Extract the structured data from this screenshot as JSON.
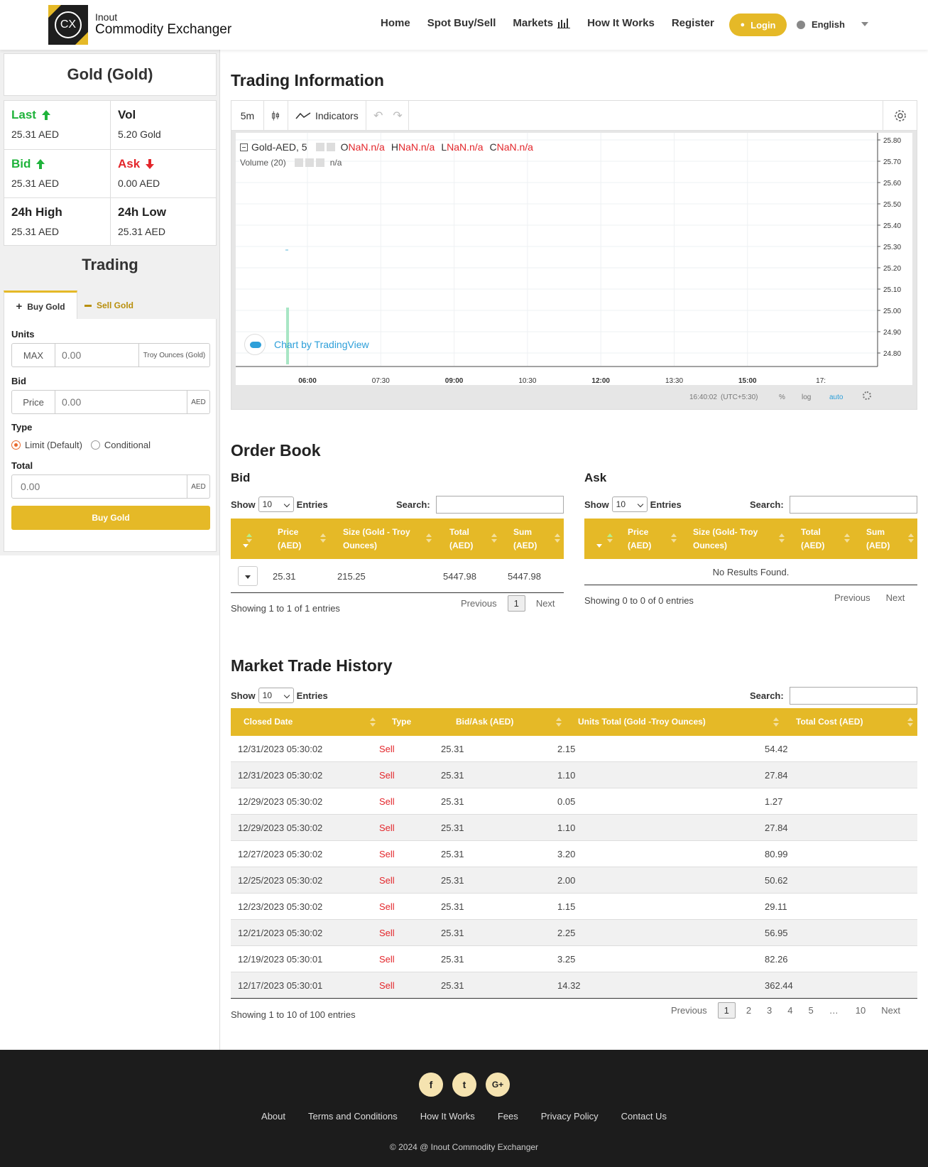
{
  "header": {
    "logo_mark": "CX",
    "logo_small": "Inout",
    "logo_big": "Commodity Exchanger",
    "nav": [
      "Home",
      "Spot Buy/Sell",
      "Markets",
      "How It Works",
      "Register"
    ],
    "login": "Login",
    "language": "English"
  },
  "sidebar": {
    "asset_title": "Gold (Gold)",
    "stats": {
      "last_label": "Last",
      "last_value": "25.31 AED",
      "vol_label": "Vol",
      "vol_value": "5.20 Gold",
      "bid_label": "Bid",
      "bid_value": "25.31 AED",
      "ask_label": "Ask",
      "ask_value": "0.00 AED",
      "high_label": "24h High",
      "high_value": "25.31 AED",
      "low_label": "24h Low",
      "low_value": "25.31 AED"
    },
    "trading_title": "Trading",
    "tab_buy": "Buy Gold",
    "tab_sell": "Sell Gold",
    "form": {
      "units_label": "Units",
      "units_prefix": "MAX",
      "units_placeholder": "0.00",
      "units_suffix": "Troy Ounces (Gold)",
      "bid_label": "Bid",
      "bid_prefix": "Price",
      "bid_placeholder": "0.00",
      "bid_suffix": "AED",
      "type_label": "Type",
      "type_limit": "Limit (Default)",
      "type_conditional": "Conditional",
      "total_label": "Total",
      "total_placeholder": "0.00",
      "total_suffix": "AED",
      "submit": "Buy Gold"
    }
  },
  "trading_info": {
    "title": "Trading Information",
    "toolbar": {
      "interval": "5m",
      "indicators": "Indicators"
    },
    "legend": {
      "symbol": "Gold-AED, 5",
      "o": "O",
      "h": "H",
      "l": "L",
      "c": "C",
      "nan": "NaN.n/a",
      "volume": "Volume (20)",
      "volume_val": "n/a"
    },
    "attribution": "Chart by TradingView",
    "price_axis": [
      "25.80",
      "25.70",
      "25.60",
      "25.50",
      "25.40",
      "25.30",
      "25.20",
      "25.10",
      "25.00",
      "24.90",
      "24.80"
    ],
    "time_axis": [
      "06:00",
      "07:30",
      "09:00",
      "10:30",
      "12:00",
      "13:30",
      "15:00",
      "17:"
    ],
    "footer": {
      "time": "16:40:02",
      "tz": "(UTC+5:30)",
      "pct": "%",
      "log": "log",
      "auto": "auto"
    }
  },
  "chart_data": {
    "type": "line",
    "title": "Gold-AED, 5",
    "x": [
      "06:00",
      "07:30",
      "09:00",
      "10:30",
      "12:00",
      "13:30",
      "15:00"
    ],
    "series": [],
    "ylim": [
      24.8,
      25.8
    ],
    "grid": true
  },
  "order_book": {
    "title": "Order Book",
    "show": "Show",
    "entries": "Entries",
    "entries_count": "10",
    "search": "Search:",
    "headers": [
      "Price (AED)",
      "Size (Gold - Troy Ounces)",
      "Total (AED)",
      "Sum (AED)"
    ],
    "ask_headers": [
      "Price (AED)",
      "Size (Gold- Troy Ounces)",
      "Total (AED)",
      "Sum (AED)"
    ],
    "bid": {
      "title": "Bid",
      "rows": [
        [
          "25.31",
          "215.25",
          "5447.98",
          "5447.98"
        ]
      ],
      "info": "Showing 1 to 1 of 1 entries",
      "prev": "Previous",
      "page": "1",
      "next": "Next"
    },
    "ask": {
      "title": "Ask",
      "empty": "No Results Found.",
      "info": "Showing 0 to 0 of 0 entries",
      "prev": "Previous",
      "next": "Next"
    }
  },
  "history": {
    "title": "Market Trade History",
    "show": "Show",
    "entries": "Entries",
    "entries_count": "10",
    "search": "Search:",
    "headers": [
      "Closed Date",
      "Type",
      "Bid/Ask (AED)",
      "Units Total (Gold -Troy Ounces)",
      "Total Cost (AED)"
    ],
    "rows": [
      [
        "12/31/2023 05:30:02",
        "Sell",
        "25.31",
        "2.15",
        "54.42"
      ],
      [
        "12/31/2023 05:30:02",
        "Sell",
        "25.31",
        "1.10",
        "27.84"
      ],
      [
        "12/29/2023 05:30:02",
        "Sell",
        "25.31",
        "0.05",
        "1.27"
      ],
      [
        "12/29/2023 05:30:02",
        "Sell",
        "25.31",
        "1.10",
        "27.84"
      ],
      [
        "12/27/2023 05:30:02",
        "Sell",
        "25.31",
        "3.20",
        "80.99"
      ],
      [
        "12/25/2023 05:30:02",
        "Sell",
        "25.31",
        "2.00",
        "50.62"
      ],
      [
        "12/23/2023 05:30:02",
        "Sell",
        "25.31",
        "1.15",
        "29.11"
      ],
      [
        "12/21/2023 05:30:02",
        "Sell",
        "25.31",
        "2.25",
        "56.95"
      ],
      [
        "12/19/2023 05:30:01",
        "Sell",
        "25.31",
        "3.25",
        "82.26"
      ],
      [
        "12/17/2023 05:30:01",
        "Sell",
        "25.31",
        "14.32",
        "362.44"
      ]
    ],
    "info": "Showing 1 to 10 of 100 entries",
    "pager": [
      "Previous",
      "1",
      "2",
      "3",
      "4",
      "5",
      "…",
      "10",
      "Next"
    ]
  },
  "footer": {
    "social": [
      "f",
      "t",
      "G+"
    ],
    "links": [
      "About",
      "Terms and Conditions",
      "How It Works",
      "Fees",
      "Privacy Policy",
      "Contact Us"
    ],
    "copyright": "© 2024 @ Inout Commodity Exchanger"
  },
  "colors": {
    "accent": "#e5b927",
    "green": "#1fb33b",
    "red": "#e3262b",
    "footer": "#1c1c1c"
  }
}
